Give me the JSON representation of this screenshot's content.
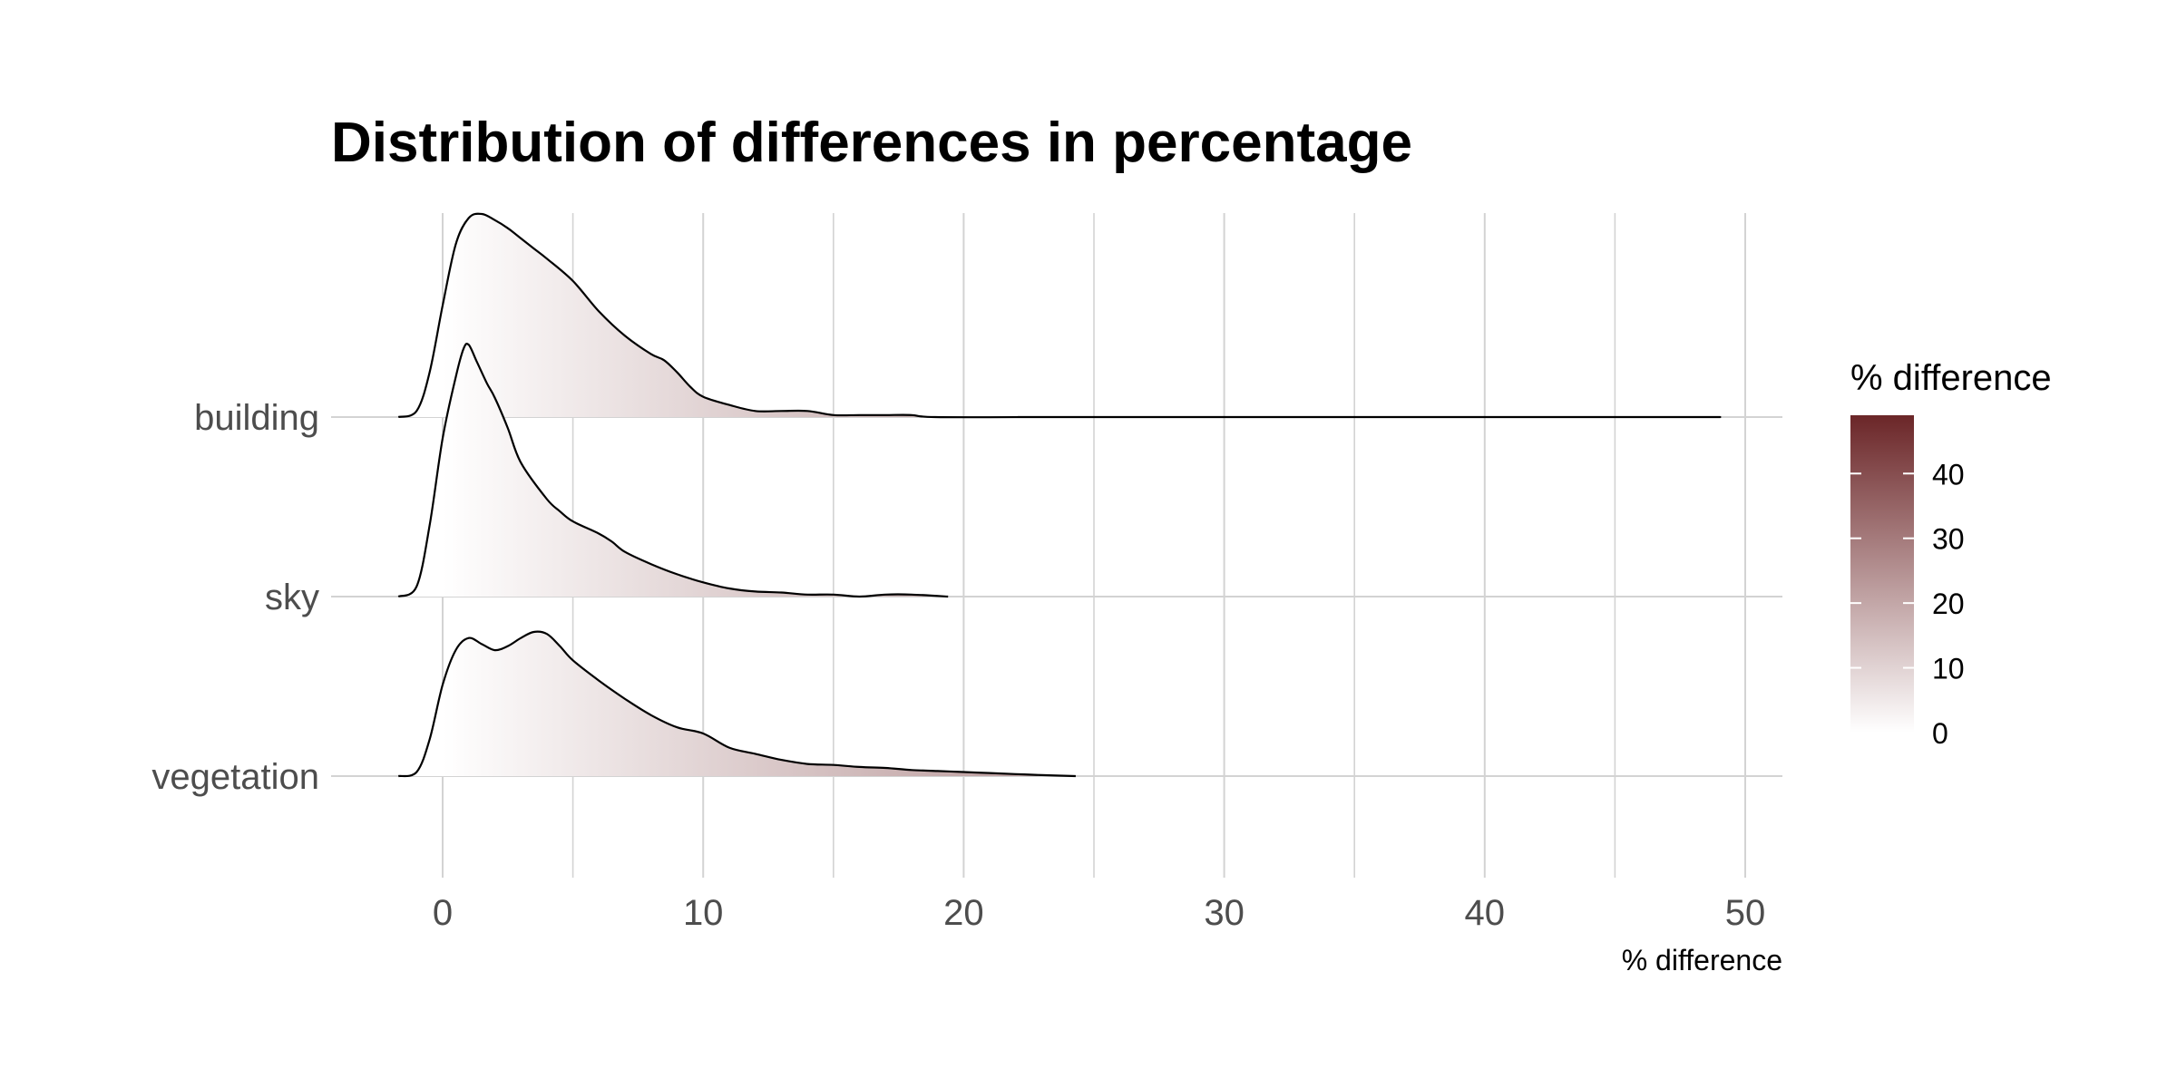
{
  "chart_data": {
    "type": "ridgeline",
    "title": "Distribution of differences in percentage",
    "xlabel": "% difference",
    "ylabel": "",
    "xlim": [
      -4,
      51.5
    ],
    "x_ticks": [
      0,
      10,
      20,
      30,
      40,
      50
    ],
    "x_tick_labels": [
      "0",
      "10",
      "20",
      "30",
      "40",
      "50"
    ],
    "grid": true,
    "fill_gradient": {
      "low": "#ffffff",
      "high": "#6b2628",
      "domain": [
        0,
        50
      ]
    },
    "categories": [
      "building",
      "sky",
      "vegetation"
    ],
    "series": [
      {
        "name": "building",
        "x": [
          -1.7,
          -1.0,
          -0.5,
          0,
          0.5,
          1.0,
          1.5,
          2.0,
          2.5,
          3.0,
          3.5,
          4.0,
          5.0,
          6.0,
          7.0,
          8.0,
          8.5,
          9.0,
          9.5,
          10,
          11,
          12,
          13,
          14,
          15,
          16,
          17,
          18,
          18.9,
          23,
          23.9,
          47,
          48
        ],
        "density": [
          0.0,
          0.03,
          0.22,
          0.55,
          0.85,
          0.98,
          1.0,
          0.97,
          0.93,
          0.88,
          0.83,
          0.78,
          0.67,
          0.52,
          0.4,
          0.31,
          0.28,
          0.22,
          0.15,
          0.1,
          0.06,
          0.03,
          0.03,
          0.03,
          0.01,
          0.01,
          0.01,
          0.01,
          0.0,
          0.0,
          0.0,
          0.0,
          0.0
        ]
      },
      {
        "name": "sky",
        "x": [
          -1.7,
          -1.0,
          -0.5,
          0,
          0.5,
          0.8,
          1.0,
          1.3,
          1.7,
          2.0,
          2.5,
          3.0,
          4.0,
          4.5,
          5.0,
          6.0,
          6.5,
          7.0,
          8.0,
          9.0,
          10,
          11,
          12,
          13,
          14,
          15,
          16,
          17,
          18,
          19.4
        ],
        "density": [
          0.0,
          0.05,
          0.35,
          0.78,
          1.08,
          1.22,
          1.24,
          1.16,
          1.05,
          0.98,
          0.83,
          0.66,
          0.48,
          0.42,
          0.37,
          0.31,
          0.27,
          0.22,
          0.16,
          0.11,
          0.07,
          0.04,
          0.025,
          0.02,
          0.01,
          0.01,
          0.0,
          0.01,
          0.01,
          0.0
        ]
      },
      {
        "name": "vegetation",
        "x": [
          -1.7,
          -1.0,
          -0.5,
          0,
          0.5,
          1.0,
          1.5,
          2.0,
          2.5,
          3.0,
          3.5,
          4.0,
          4.5,
          5.0,
          6.0,
          7.0,
          8.0,
          9.0,
          10,
          11,
          12,
          13,
          14,
          15,
          16,
          17,
          18,
          19,
          20,
          21,
          22,
          23,
          24.3
        ],
        "density": [
          0.0,
          0.02,
          0.18,
          0.45,
          0.62,
          0.68,
          0.65,
          0.62,
          0.64,
          0.68,
          0.71,
          0.7,
          0.64,
          0.57,
          0.47,
          0.38,
          0.3,
          0.24,
          0.21,
          0.14,
          0.11,
          0.08,
          0.06,
          0.055,
          0.045,
          0.04,
          0.03,
          0.025,
          0.02,
          0.015,
          0.01,
          0.005,
          0.0
        ]
      }
    ],
    "legend": {
      "title": "% difference",
      "position": "right",
      "range": [
        0,
        49
      ],
      "ticks": [
        0,
        10,
        20,
        30,
        40
      ],
      "tick_labels": [
        "0",
        "10",
        "20",
        "30",
        "40"
      ]
    }
  }
}
